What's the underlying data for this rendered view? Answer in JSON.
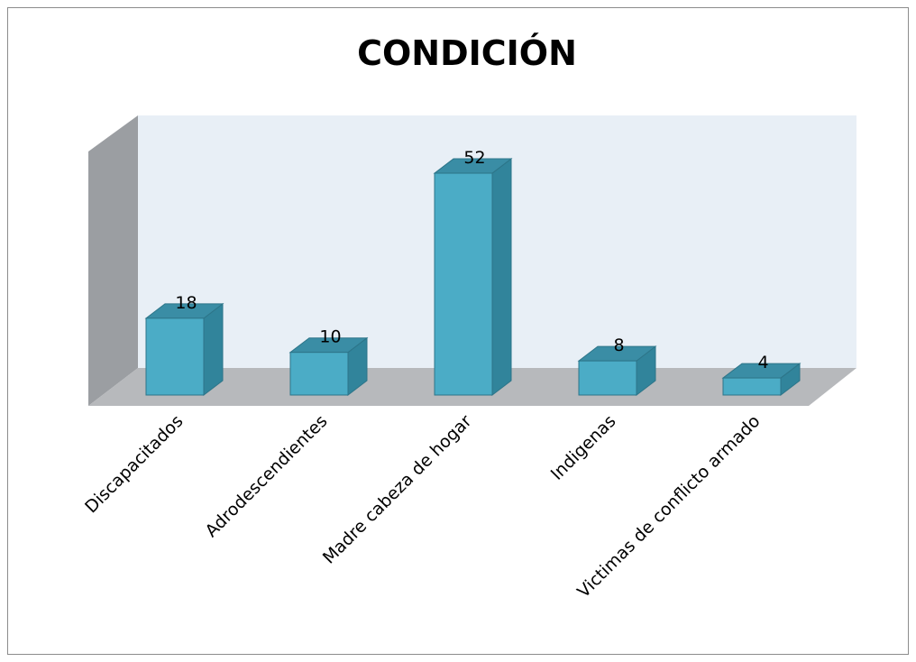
{
  "chart_data": {
    "type": "bar",
    "title": "CONDICIÓN",
    "categories": [
      "Discapacitados",
      "Adrodescendientes",
      "Madre cabeza de hogar",
      "Indigenas",
      "Victimas de conflicto armado"
    ],
    "values": [
      18,
      10,
      52,
      8,
      4
    ],
    "xlabel": "",
    "ylabel": "",
    "ylim": [
      0,
      60
    ],
    "grid": false,
    "legend": "none",
    "three_d": true,
    "colors": {
      "bar_front": "#4bacc6",
      "bar_side": "#31849b",
      "bar_top": "#3a8da5",
      "bar_edge": "#2d7589",
      "back_wall": "#e8eff6",
      "side_wall": "#9b9ea2",
      "floor": "#b7b9bc"
    }
  }
}
